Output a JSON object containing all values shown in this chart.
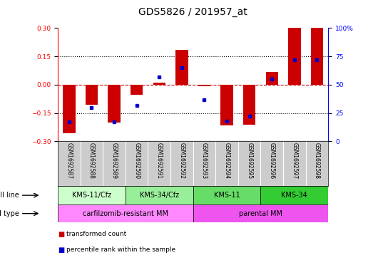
{
  "title": "GDS5826 / 201957_at",
  "samples": [
    "GSM1692587",
    "GSM1692588",
    "GSM1692589",
    "GSM1692590",
    "GSM1692591",
    "GSM1692592",
    "GSM1692593",
    "GSM1692594",
    "GSM1692595",
    "GSM1692596",
    "GSM1692597",
    "GSM1692598"
  ],
  "transformed_count": [
    -0.255,
    -0.105,
    -0.2,
    -0.055,
    0.012,
    0.185,
    -0.008,
    -0.215,
    -0.21,
    0.068,
    0.305,
    0.305
  ],
  "percentile_rank": [
    17,
    30,
    17,
    32,
    57,
    65,
    37,
    18,
    22,
    55,
    72,
    72
  ],
  "ylim_left": [
    -0.3,
    0.3
  ],
  "ylim_right": [
    0,
    100
  ],
  "yticks_left": [
    -0.3,
    -0.15,
    0.0,
    0.15,
    0.3
  ],
  "yticks_right": [
    0,
    25,
    50,
    75,
    100
  ],
  "hlines_dotted": [
    -0.15,
    0.15
  ],
  "hline_dashed_red": 0.0,
  "bar_color": "#cc0000",
  "dot_color": "#0000cc",
  "cell_line_groups": [
    {
      "label": "KMS-11/Cfz",
      "start": 0,
      "end": 3,
      "color": "#ccffcc"
    },
    {
      "label": "KMS-34/Cfz",
      "start": 3,
      "end": 6,
      "color": "#99ee99"
    },
    {
      "label": "KMS-11",
      "start": 6,
      "end": 9,
      "color": "#66dd66"
    },
    {
      "label": "KMS-34",
      "start": 9,
      "end": 12,
      "color": "#33cc33"
    }
  ],
  "cell_type_groups": [
    {
      "label": "carfilzomib-resistant MM",
      "start": 0,
      "end": 6,
      "color": "#ff88ff"
    },
    {
      "label": "parental MM",
      "start": 6,
      "end": 12,
      "color": "#ee55ee"
    }
  ],
  "legend_items": [
    {
      "label": "transformed count",
      "color": "#cc0000"
    },
    {
      "label": "percentile rank within the sample",
      "color": "#0000cc"
    }
  ],
  "sample_col_color": "#cccccc",
  "background_color": "#ffffff",
  "title_fontsize": 10,
  "tick_fontsize": 6.5,
  "annot_fontsize": 7,
  "sample_fontsize": 5.5
}
